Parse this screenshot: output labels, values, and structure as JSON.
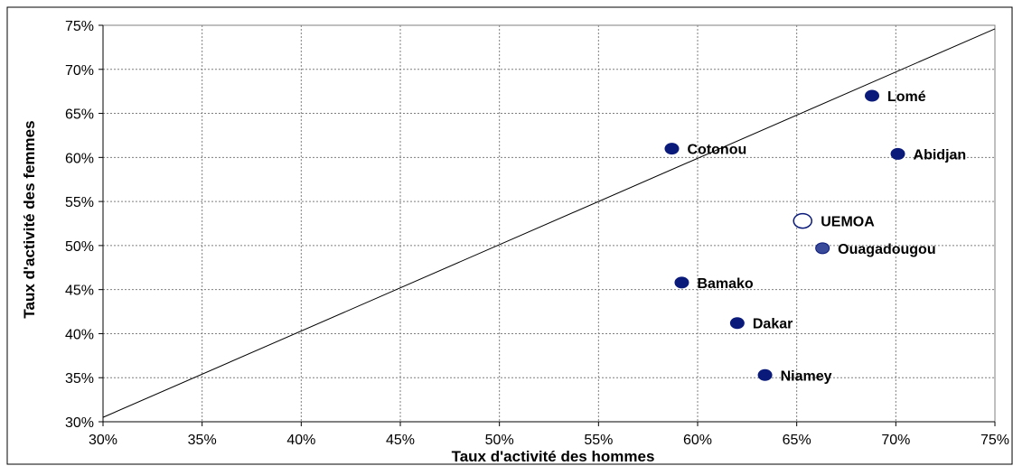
{
  "chart_data": {
    "type": "scatter",
    "title": "",
    "xlabel": "Taux d'activité des hommes",
    "ylabel": "Taux d'activité des femmes",
    "xlim": [
      30,
      75
    ],
    "ylim": [
      30,
      75
    ],
    "x_ticks": [
      "30%",
      "35%",
      "40%",
      "45%",
      "50%",
      "55%",
      "60%",
      "65%",
      "70%",
      "75%"
    ],
    "y_ticks": [
      "30%",
      "35%",
      "40%",
      "45%",
      "50%",
      "55%",
      "60%",
      "65%",
      "70%",
      "75%"
    ],
    "grid": true,
    "diagonal_line": {
      "from": [
        30,
        30.5
      ],
      "to": [
        75,
        74.6
      ]
    },
    "colors": {
      "point": "#0a1a7a",
      "highlight": "#ffffff",
      "ouaga": "#3a4a9a"
    },
    "points": [
      {
        "label": "Lomé",
        "x": 68.8,
        "y": 67.0,
        "style": "filled"
      },
      {
        "label": "Cotonou",
        "x": 58.7,
        "y": 61.0,
        "style": "filled"
      },
      {
        "label": "Abidjan",
        "x": 70.1,
        "y": 60.4,
        "style": "filled"
      },
      {
        "label": "UEMOA",
        "x": 65.3,
        "y": 52.8,
        "style": "hollow"
      },
      {
        "label": "Ouagadougou",
        "x": 66.3,
        "y": 49.7,
        "style": "medium"
      },
      {
        "label": "Bamako",
        "x": 59.2,
        "y": 45.8,
        "style": "filled"
      },
      {
        "label": "Dakar",
        "x": 62.0,
        "y": 41.2,
        "style": "filled"
      },
      {
        "label": "Niamey",
        "x": 63.4,
        "y": 35.3,
        "style": "filled"
      }
    ]
  }
}
